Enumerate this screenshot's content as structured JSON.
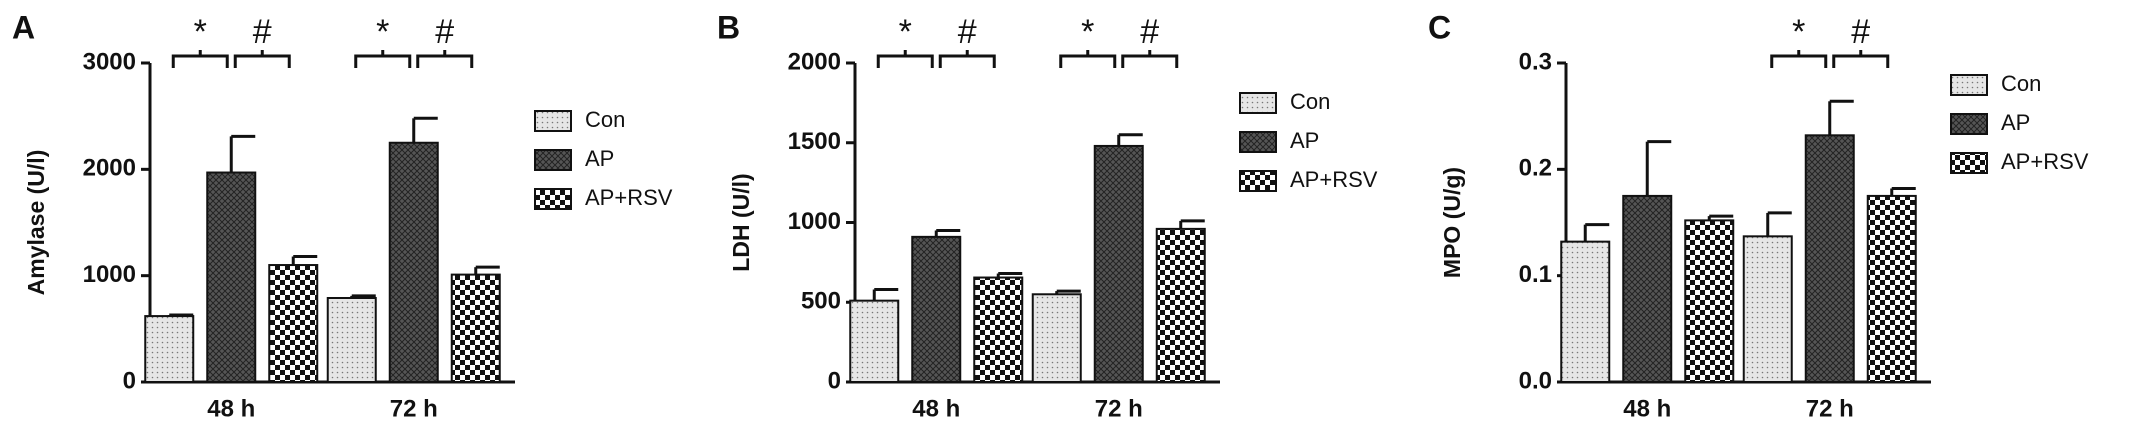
{
  "chart_data": [
    {
      "type": "bar",
      "panel_label": "A",
      "ylabel": "Amylase (U/l)",
      "categories": [
        "48 h",
        "72 h"
      ],
      "series": [
        {
          "name": "Con",
          "color": "#e6e6e6",
          "values": [
            620,
            790
          ],
          "errors": [
            10,
            20
          ]
        },
        {
          "name": "AP",
          "color": "#555555",
          "values": [
            1970,
            2250
          ],
          "errors": [
            340,
            230
          ]
        },
        {
          "name": "AP+RSV",
          "color": "#ffffff",
          "values": [
            1100,
            1010
          ],
          "errors": [
            80,
            70
          ]
        }
      ],
      "ylim": [
        0,
        3000
      ],
      "yticks": [
        0,
        1000,
        2000,
        3000
      ],
      "annotations": [
        [
          "*",
          "#"
        ],
        [
          "*",
          "#"
        ]
      ]
    },
    {
      "type": "bar",
      "panel_label": "B",
      "ylabel": "LDH (U/l)",
      "categories": [
        "48 h",
        "72 h"
      ],
      "series": [
        {
          "name": "Con",
          "color": "#e6e6e6",
          "values": [
            510,
            550
          ],
          "errors": [
            70,
            20
          ]
        },
        {
          "name": "AP",
          "color": "#555555",
          "values": [
            910,
            1480
          ],
          "errors": [
            40,
            70
          ]
        },
        {
          "name": "AP+RSV",
          "color": "#ffffff",
          "values": [
            655,
            960
          ],
          "errors": [
            25,
            50
          ]
        }
      ],
      "ylim": [
        0,
        2000
      ],
      "yticks": [
        0,
        500,
        1000,
        1500,
        2000
      ],
      "annotations": [
        [
          "*",
          "#"
        ],
        [
          "*",
          "#"
        ]
      ]
    },
    {
      "type": "bar",
      "panel_label": "C",
      "ylabel": "MPO (U/g)",
      "categories": [
        "48 h",
        "72 h"
      ],
      "series": [
        {
          "name": "Con",
          "color": "#e6e6e6",
          "values": [
            0.132,
            0.137
          ],
          "errors": [
            0.016,
            0.022
          ]
        },
        {
          "name": "AP",
          "color": "#555555",
          "values": [
            0.175,
            0.232
          ],
          "errors": [
            0.051,
            0.032
          ]
        },
        {
          "name": "AP+RSV",
          "color": "#ffffff",
          "values": [
            0.152,
            0.175
          ],
          "errors": [
            0.004,
            0.007
          ]
        }
      ],
      "ylim": [
        0,
        0.3
      ],
      "yticks": [
        {
          "value": 0,
          "label": "0.0"
        },
        0.1,
        0.2,
        0.3
      ],
      "annotations": [
        [],
        [
          "*",
          "#"
        ]
      ]
    }
  ]
}
